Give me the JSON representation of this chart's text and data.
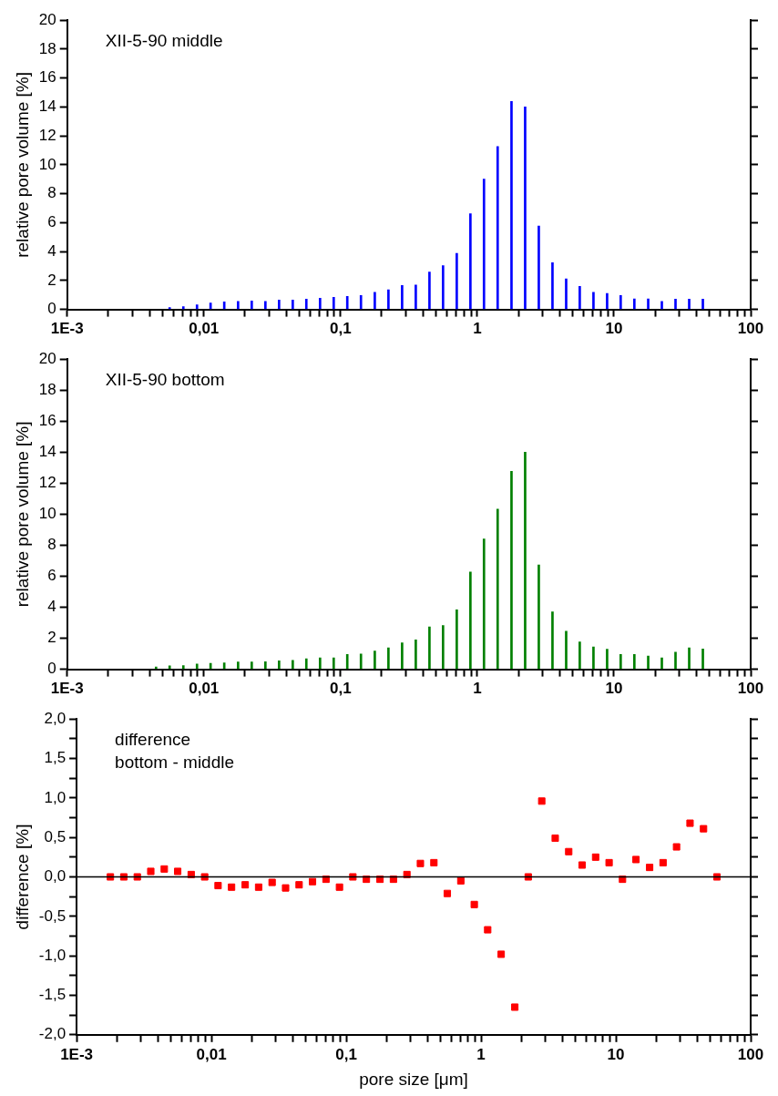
{
  "chart_data": [
    {
      "type": "bar",
      "annotations": [
        "XII-5-90 middle"
      ],
      "ylabel": "relative pore volume [%]",
      "log": "x",
      "grid": false,
      "color": "#0000ff",
      "x": [
        0.00562,
        0.00708,
        0.00891,
        0.0112,
        0.0141,
        0.0178,
        0.0224,
        0.0282,
        0.0355,
        0.0447,
        0.0562,
        0.0708,
        0.0891,
        0.112,
        0.141,
        0.178,
        0.224,
        0.282,
        0.355,
        0.447,
        0.562,
        0.708,
        0.891,
        1.12,
        1.41,
        1.78,
        2.24,
        2.82,
        3.55,
        4.47,
        5.62,
        7.08,
        8.91,
        11.2,
        14.1,
        17.8,
        22.4,
        28.2,
        35.5,
        44.7
      ],
      "values": [
        0.13,
        0.19,
        0.32,
        0.45,
        0.52,
        0.56,
        0.58,
        0.56,
        0.65,
        0.65,
        0.71,
        0.77,
        0.84,
        0.9,
        0.97,
        1.18,
        1.35,
        1.66,
        1.68,
        2.58,
        3.03,
        3.87,
        6.62,
        9.01,
        11.27,
        14.39,
        14.0,
        5.76,
        3.23,
        2.11,
        1.59,
        1.18,
        1.1,
        0.97,
        0.73,
        0.73,
        0.56,
        0.71,
        0.71,
        0.71
      ],
      "xlim": [
        0.001,
        100
      ],
      "xticks": [
        {
          "value": 0.001,
          "label": "1E-3"
        },
        {
          "value": 0.002,
          "label": null
        },
        {
          "value": 0.003,
          "label": null
        },
        {
          "value": 0.004,
          "label": null
        },
        {
          "value": 0.005,
          "label": null
        },
        {
          "value": 0.006,
          "label": null
        },
        {
          "value": 0.007,
          "label": null
        },
        {
          "value": 0.008,
          "label": null
        },
        {
          "value": 0.009,
          "label": null
        },
        {
          "value": 0.01,
          "label": "0,01"
        },
        {
          "value": 0.02,
          "label": null
        },
        {
          "value": 0.03,
          "label": null
        },
        {
          "value": 0.04,
          "label": null
        },
        {
          "value": 0.05,
          "label": null
        },
        {
          "value": 0.06,
          "label": null
        },
        {
          "value": 0.07,
          "label": null
        },
        {
          "value": 0.08,
          "label": null
        },
        {
          "value": 0.09,
          "label": null
        },
        {
          "value": 0.1,
          "label": "0,1"
        },
        {
          "value": 0.2,
          "label": null
        },
        {
          "value": 0.3,
          "label": null
        },
        {
          "value": 0.4,
          "label": null
        },
        {
          "value": 0.5,
          "label": null
        },
        {
          "value": 0.6,
          "label": null
        },
        {
          "value": 0.7,
          "label": null
        },
        {
          "value": 0.8,
          "label": null
        },
        {
          "value": 0.9,
          "label": null
        },
        1,
        {
          "value": 2,
          "label": null
        },
        {
          "value": 3,
          "label": null
        },
        {
          "value": 4,
          "label": null
        },
        {
          "value": 5,
          "label": null
        },
        {
          "value": 6,
          "label": null
        },
        {
          "value": 7,
          "label": null
        },
        {
          "value": 8,
          "label": null
        },
        {
          "value": 9,
          "label": null
        },
        10,
        {
          "value": 20,
          "label": null
        },
        {
          "value": 30,
          "label": null
        },
        {
          "value": 40,
          "label": null
        },
        {
          "value": 50,
          "label": null
        },
        {
          "value": 60,
          "label": null
        },
        {
          "value": 70,
          "label": null
        },
        {
          "value": 80,
          "label": null
        },
        {
          "value": 90,
          "label": null
        },
        100
      ],
      "ylim": [
        0,
        20
      ],
      "yticks": [
        0,
        2,
        4,
        6,
        8,
        10,
        12,
        14,
        16,
        18,
        20
      ]
    },
    {
      "type": "bar",
      "annotations": [
        "XII-5-90 bottom"
      ],
      "ylabel": "relative pore volume [%]",
      "log": "x",
      "grid": false,
      "color": "#008000",
      "x": [
        0.00447,
        0.00562,
        0.00708,
        0.00891,
        0.0112,
        0.0141,
        0.0178,
        0.0224,
        0.0282,
        0.0355,
        0.0447,
        0.0562,
        0.0708,
        0.0891,
        0.112,
        0.141,
        0.178,
        0.224,
        0.282,
        0.355,
        0.447,
        0.562,
        0.708,
        0.891,
        1.12,
        1.41,
        1.78,
        2.24,
        2.82,
        3.55,
        4.47,
        5.62,
        7.08,
        8.91,
        11.2,
        14.1,
        17.8,
        22.4,
        28.2,
        35.5,
        44.7
      ],
      "values": [
        0.15,
        0.22,
        0.24,
        0.34,
        0.39,
        0.41,
        0.47,
        0.47,
        0.49,
        0.54,
        0.58,
        0.67,
        0.73,
        0.73,
        0.95,
        0.99,
        1.18,
        1.38,
        1.7,
        1.89,
        2.73,
        2.82,
        3.83,
        6.28,
        8.41,
        10.32,
        12.77,
        14.0,
        6.73,
        3.7,
        2.45,
        1.76,
        1.44,
        1.29,
        0.95,
        0.95,
        0.86,
        0.73,
        1.1,
        1.38,
        1.31
      ],
      "xlim": [
        0.001,
        100
      ],
      "xticks": [
        {
          "value": 0.001,
          "label": "1E-3"
        },
        {
          "value": 0.002,
          "label": null
        },
        {
          "value": 0.003,
          "label": null
        },
        {
          "value": 0.004,
          "label": null
        },
        {
          "value": 0.005,
          "label": null
        },
        {
          "value": 0.006,
          "label": null
        },
        {
          "value": 0.007,
          "label": null
        },
        {
          "value": 0.008,
          "label": null
        },
        {
          "value": 0.009,
          "label": null
        },
        {
          "value": 0.01,
          "label": "0,01"
        },
        {
          "value": 0.02,
          "label": null
        },
        {
          "value": 0.03,
          "label": null
        },
        {
          "value": 0.04,
          "label": null
        },
        {
          "value": 0.05,
          "label": null
        },
        {
          "value": 0.06,
          "label": null
        },
        {
          "value": 0.07,
          "label": null
        },
        {
          "value": 0.08,
          "label": null
        },
        {
          "value": 0.09,
          "label": null
        },
        {
          "value": 0.1,
          "label": "0,1"
        },
        {
          "value": 0.2,
          "label": null
        },
        {
          "value": 0.3,
          "label": null
        },
        {
          "value": 0.4,
          "label": null
        },
        {
          "value": 0.5,
          "label": null
        },
        {
          "value": 0.6,
          "label": null
        },
        {
          "value": 0.7,
          "label": null
        },
        {
          "value": 0.8,
          "label": null
        },
        {
          "value": 0.9,
          "label": null
        },
        1,
        {
          "value": 2,
          "label": null
        },
        {
          "value": 3,
          "label": null
        },
        {
          "value": 4,
          "label": null
        },
        {
          "value": 5,
          "label": null
        },
        {
          "value": 6,
          "label": null
        },
        {
          "value": 7,
          "label": null
        },
        {
          "value": 8,
          "label": null
        },
        {
          "value": 9,
          "label": null
        },
        10,
        {
          "value": 20,
          "label": null
        },
        {
          "value": 30,
          "label": null
        },
        {
          "value": 40,
          "label": null
        },
        {
          "value": 50,
          "label": null
        },
        {
          "value": 60,
          "label": null
        },
        {
          "value": 70,
          "label": null
        },
        {
          "value": 80,
          "label": null
        },
        {
          "value": 90,
          "label": null
        },
        100
      ],
      "ylim": [
        0,
        20
      ],
      "yticks": [
        0,
        2,
        4,
        6,
        8,
        10,
        12,
        14,
        16,
        18,
        20
      ]
    },
    {
      "type": "scatter",
      "annotations": [
        "difference",
        "bottom - middle"
      ],
      "xlabel": "pore size [μm]",
      "ylabel": "difference [%]",
      "log": "x",
      "grid": false,
      "color": "#ff0000",
      "marker": "square",
      "x": [
        0.00178,
        0.00224,
        0.00282,
        0.00355,
        0.00447,
        0.00562,
        0.00708,
        0.00891,
        0.0112,
        0.0141,
        0.0178,
        0.0224,
        0.0282,
        0.0355,
        0.0447,
        0.0562,
        0.0708,
        0.0891,
        0.112,
        0.141,
        0.178,
        0.224,
        0.282,
        0.355,
        0.447,
        0.562,
        0.708,
        0.891,
        1.12,
        1.41,
        1.78,
        2.24,
        2.82,
        3.55,
        4.47,
        5.62,
        7.08,
        8.91,
        11.2,
        14.1,
        17.8,
        22.4,
        28.2,
        35.5,
        44.7,
        56.2
      ],
      "values": [
        0.0,
        0.0,
        0.0,
        0.07,
        0.1,
        0.07,
        0.03,
        0.0,
        -0.11,
        -0.13,
        -0.1,
        -0.13,
        -0.07,
        -0.14,
        -0.1,
        -0.06,
        -0.03,
        -0.13,
        0.0,
        -0.03,
        -0.03,
        -0.03,
        0.03,
        0.17,
        0.18,
        -0.21,
        -0.05,
        -0.35,
        -0.67,
        -0.98,
        -1.65,
        0.0,
        0.96,
        0.49,
        0.32,
        0.15,
        0.25,
        0.18,
        -0.03,
        0.22,
        0.12,
        0.18,
        0.38,
        0.68,
        0.61,
        0.0
      ],
      "ref_lines": [
        {
          "axis": "y",
          "value": 0,
          "color": "#000000"
        }
      ],
      "xlim": [
        0.001,
        100
      ],
      "xticks": [
        {
          "value": 0.001,
          "label": "1E-3"
        },
        {
          "value": 0.002,
          "label": null
        },
        {
          "value": 0.003,
          "label": null
        },
        {
          "value": 0.004,
          "label": null
        },
        {
          "value": 0.005,
          "label": null
        },
        {
          "value": 0.006,
          "label": null
        },
        {
          "value": 0.007,
          "label": null
        },
        {
          "value": 0.008,
          "label": null
        },
        {
          "value": 0.009,
          "label": null
        },
        {
          "value": 0.01,
          "label": "0,01"
        },
        {
          "value": 0.02,
          "label": null
        },
        {
          "value": 0.03,
          "label": null
        },
        {
          "value": 0.04,
          "label": null
        },
        {
          "value": 0.05,
          "label": null
        },
        {
          "value": 0.06,
          "label": null
        },
        {
          "value": 0.07,
          "label": null
        },
        {
          "value": 0.08,
          "label": null
        },
        {
          "value": 0.09,
          "label": null
        },
        {
          "value": 0.1,
          "label": "0,1"
        },
        {
          "value": 0.2,
          "label": null
        },
        {
          "value": 0.3,
          "label": null
        },
        {
          "value": 0.4,
          "label": null
        },
        {
          "value": 0.5,
          "label": null
        },
        {
          "value": 0.6,
          "label": null
        },
        {
          "value": 0.7,
          "label": null
        },
        {
          "value": 0.8,
          "label": null
        },
        {
          "value": 0.9,
          "label": null
        },
        1,
        {
          "value": 2,
          "label": null
        },
        {
          "value": 3,
          "label": null
        },
        {
          "value": 4,
          "label": null
        },
        {
          "value": 5,
          "label": null
        },
        {
          "value": 6,
          "label": null
        },
        {
          "value": 7,
          "label": null
        },
        {
          "value": 8,
          "label": null
        },
        {
          "value": 9,
          "label": null
        },
        10,
        {
          "value": 20,
          "label": null
        },
        {
          "value": 30,
          "label": null
        },
        {
          "value": 40,
          "label": null
        },
        {
          "value": 50,
          "label": null
        },
        {
          "value": 60,
          "label": null
        },
        {
          "value": 70,
          "label": null
        },
        {
          "value": 80,
          "label": null
        },
        {
          "value": 90,
          "label": null
        },
        100
      ],
      "ylim": [
        -2,
        2
      ],
      "yticks": [
        {
          "value": -2,
          "label": "-2,0"
        },
        {
          "value": -1.75,
          "label": null
        },
        {
          "value": -1.5,
          "label": "-1,5"
        },
        {
          "value": -1.25,
          "label": null
        },
        {
          "value": -1,
          "label": "-1,0"
        },
        {
          "value": -0.75,
          "label": null
        },
        {
          "value": -0.5,
          "label": "-0,5"
        },
        {
          "value": -0.25,
          "label": null
        },
        {
          "value": 0,
          "label": "0,0"
        },
        {
          "value": 0.25,
          "label": null
        },
        {
          "value": 0.5,
          "label": "0,5"
        },
        {
          "value": 0.75,
          "label": null
        },
        {
          "value": 1,
          "label": "1,0"
        },
        {
          "value": 1.25,
          "label": null
        },
        {
          "value": 1.5,
          "label": "1,5"
        },
        {
          "value": 1.75,
          "label": null
        },
        {
          "value": 2,
          "label": "2,0"
        }
      ]
    }
  ]
}
